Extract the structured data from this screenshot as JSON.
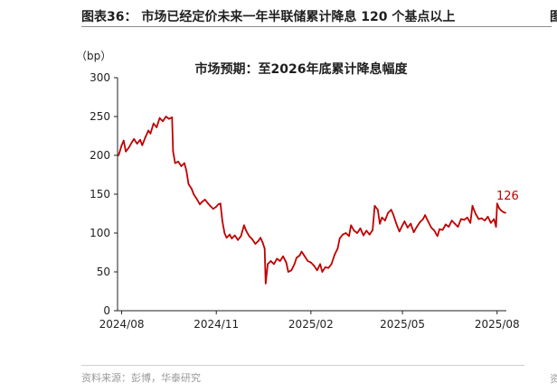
{
  "header": {
    "figure_title": "图表36：  市场已经定价未来一年半联储累计降息 120 个基点以上",
    "edge_mark": "图",
    "source": "资料来源：彭博，华泰研究",
    "source_edge": "资"
  },
  "chart_data": {
    "type": "line",
    "title": "市场预期：至2026年底累计降息幅度",
    "ylabel": "（bp）",
    "xlabel": "",
    "ylim": [
      0,
      300
    ],
    "yticks": [
      0,
      50,
      100,
      150,
      200,
      250,
      300
    ],
    "xlim": [
      "2024-07-28",
      "2025-08-10"
    ],
    "xticks": [
      {
        "date": "2024-08-01",
        "label": "2024/08"
      },
      {
        "date": "2024-11-01",
        "label": "2024/11"
      },
      {
        "date": "2025-02-01",
        "label": "2025/02"
      },
      {
        "date": "2025-05-01",
        "label": "2025/05"
      },
      {
        "date": "2025-08-01",
        "label": "2025/08"
      }
    ],
    "grid": false,
    "legend": "none",
    "color": "#c00000",
    "end_label": "126",
    "series": [
      {
        "points": [
          [
            "2024-07-29",
            200
          ],
          [
            "2024-08-01",
            213
          ],
          [
            "2024-08-03",
            219
          ],
          [
            "2024-08-05",
            205
          ],
          [
            "2024-08-08",
            210
          ],
          [
            "2024-08-11",
            217
          ],
          [
            "2024-08-13",
            221
          ],
          [
            "2024-08-16",
            215
          ],
          [
            "2024-08-19",
            220
          ],
          [
            "2024-08-21",
            213
          ],
          [
            "2024-08-24",
            223
          ],
          [
            "2024-08-27",
            232
          ],
          [
            "2024-08-29",
            228
          ],
          [
            "2024-09-01",
            241
          ],
          [
            "2024-09-04",
            236
          ],
          [
            "2024-09-07",
            248
          ],
          [
            "2024-09-10",
            244
          ],
          [
            "2024-09-13",
            250
          ],
          [
            "2024-09-16",
            247
          ],
          [
            "2024-09-19",
            249
          ],
          [
            "2024-09-20",
            205
          ],
          [
            "2024-09-22",
            190
          ],
          [
            "2024-09-25",
            192
          ],
          [
            "2024-09-28",
            186
          ],
          [
            "2024-10-01",
            190
          ],
          [
            "2024-10-03",
            180
          ],
          [
            "2024-10-05",
            163
          ],
          [
            "2024-10-08",
            157
          ],
          [
            "2024-10-10",
            150
          ],
          [
            "2024-10-13",
            144
          ],
          [
            "2024-10-16",
            137
          ],
          [
            "2024-10-18",
            140
          ],
          [
            "2024-10-21",
            143
          ],
          [
            "2024-10-24",
            138
          ],
          [
            "2024-10-26",
            135
          ],
          [
            "2024-10-29",
            131
          ],
          [
            "2024-11-01",
            134
          ],
          [
            "2024-11-03",
            137
          ],
          [
            "2024-11-05",
            138
          ],
          [
            "2024-11-07",
            115
          ],
          [
            "2024-11-09",
            100
          ],
          [
            "2024-11-11",
            94
          ],
          [
            "2024-11-14",
            98
          ],
          [
            "2024-11-16",
            93
          ],
          [
            "2024-11-19",
            97
          ],
          [
            "2024-11-22",
            91
          ],
          [
            "2024-11-25",
            96
          ],
          [
            "2024-11-28",
            110
          ],
          [
            "2024-11-30",
            103
          ],
          [
            "2024-12-03",
            96
          ],
          [
            "2024-12-06",
            92
          ],
          [
            "2024-12-09",
            86
          ],
          [
            "2024-12-12",
            90
          ],
          [
            "2024-12-14",
            94
          ],
          [
            "2024-12-16",
            88
          ],
          [
            "2024-12-18",
            80
          ],
          [
            "2024-12-19",
            35
          ],
          [
            "2024-12-21",
            60
          ],
          [
            "2024-12-24",
            64
          ],
          [
            "2024-12-27",
            60
          ],
          [
            "2024-12-30",
            67
          ],
          [
            "2025-01-02",
            64
          ],
          [
            "2025-01-05",
            70
          ],
          [
            "2025-01-08",
            62
          ],
          [
            "2025-01-10",
            50
          ],
          [
            "2025-01-13",
            52
          ],
          [
            "2025-01-16",
            60
          ],
          [
            "2025-01-18",
            68
          ],
          [
            "2025-01-21",
            71
          ],
          [
            "2025-01-23",
            76
          ],
          [
            "2025-01-26",
            70
          ],
          [
            "2025-01-29",
            64
          ],
          [
            "2025-02-01",
            62
          ],
          [
            "2025-02-04",
            58
          ],
          [
            "2025-02-07",
            52
          ],
          [
            "2025-02-10",
            60
          ],
          [
            "2025-02-12",
            50
          ],
          [
            "2025-02-15",
            56
          ],
          [
            "2025-02-18",
            55
          ],
          [
            "2025-02-21",
            60
          ],
          [
            "2025-02-24",
            72
          ],
          [
            "2025-02-27",
            80
          ],
          [
            "2025-03-01",
            93
          ],
          [
            "2025-03-04",
            98
          ],
          [
            "2025-03-07",
            100
          ],
          [
            "2025-03-10",
            96
          ],
          [
            "2025-03-12",
            110
          ],
          [
            "2025-03-15",
            103
          ],
          [
            "2025-03-18",
            100
          ],
          [
            "2025-03-21",
            106
          ],
          [
            "2025-03-24",
            97
          ],
          [
            "2025-03-27",
            103
          ],
          [
            "2025-03-30",
            98
          ],
          [
            "2025-04-02",
            104
          ],
          [
            "2025-04-04",
            135
          ],
          [
            "2025-04-07",
            130
          ],
          [
            "2025-04-09",
            112
          ],
          [
            "2025-04-11",
            120
          ],
          [
            "2025-04-14",
            116
          ],
          [
            "2025-04-17",
            126
          ],
          [
            "2025-04-20",
            130
          ],
          [
            "2025-04-22",
            124
          ],
          [
            "2025-04-25",
            112
          ],
          [
            "2025-04-28",
            102
          ],
          [
            "2025-05-01",
            110
          ],
          [
            "2025-05-03",
            115
          ],
          [
            "2025-05-06",
            107
          ],
          [
            "2025-05-09",
            112
          ],
          [
            "2025-05-12",
            101
          ],
          [
            "2025-05-15",
            108
          ],
          [
            "2025-05-18",
            114
          ],
          [
            "2025-05-21",
            118
          ],
          [
            "2025-05-23",
            123
          ],
          [
            "2025-05-26",
            115
          ],
          [
            "2025-05-29",
            107
          ],
          [
            "2025-06-01",
            103
          ],
          [
            "2025-06-04",
            96
          ],
          [
            "2025-06-06",
            105
          ],
          [
            "2025-06-09",
            104
          ],
          [
            "2025-06-12",
            111
          ],
          [
            "2025-06-15",
            108
          ],
          [
            "2025-06-18",
            116
          ],
          [
            "2025-06-21",
            112
          ],
          [
            "2025-06-24",
            108
          ],
          [
            "2025-06-27",
            118
          ],
          [
            "2025-06-30",
            117
          ],
          [
            "2025-07-03",
            120
          ],
          [
            "2025-07-06",
            113
          ],
          [
            "2025-07-08",
            135
          ],
          [
            "2025-07-11",
            125
          ],
          [
            "2025-07-14",
            118
          ],
          [
            "2025-07-17",
            119
          ],
          [
            "2025-07-20",
            116
          ],
          [
            "2025-07-23",
            121
          ],
          [
            "2025-07-26",
            113
          ],
          [
            "2025-07-29",
            118
          ],
          [
            "2025-07-31",
            108
          ],
          [
            "2025-08-01",
            138
          ],
          [
            "2025-08-03",
            132
          ],
          [
            "2025-08-05",
            129
          ],
          [
            "2025-08-07",
            127
          ],
          [
            "2025-08-09",
            126
          ]
        ]
      }
    ]
  }
}
